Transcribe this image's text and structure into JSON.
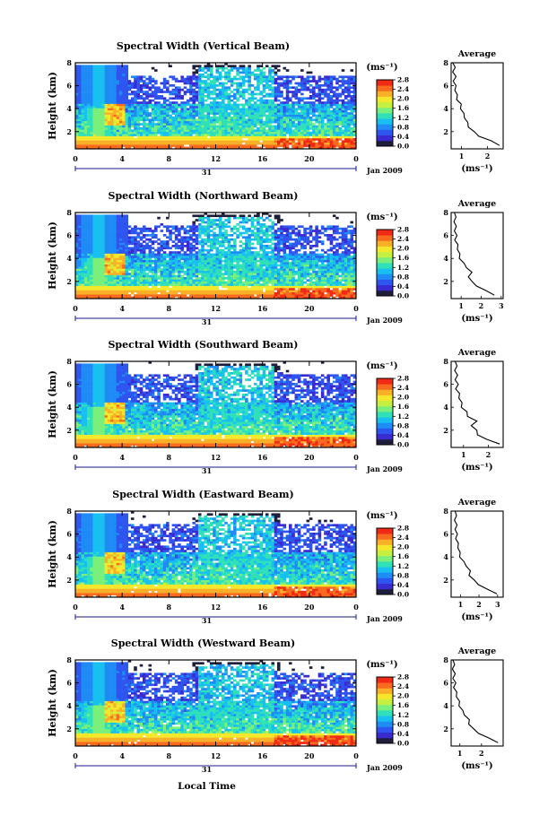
{
  "figure": {
    "xlabel": "Local Time",
    "date_label": "Jan 2009",
    "day_label": "31",
    "units_label": "(ms⁻¹)",
    "avg_title": "Average"
  },
  "colorscale": {
    "min": 0.0,
    "max": 2.8,
    "ticks": [
      "0.0",
      "0.4",
      "0.8",
      "1.2",
      "1.6",
      "2.0",
      "2.4",
      "2.8"
    ],
    "colors": [
      "#1e1e3c",
      "#3a2bd0",
      "#2f55f0",
      "#1f8bf5",
      "#17c0f0",
      "#2fe0b8",
      "#7af07c",
      "#c6f040",
      "#f4e82c",
      "#f8b028",
      "#f86a1e",
      "#f02a14"
    ]
  },
  "chart_data": [
    {
      "type": "heatmap",
      "title": "Spectral Width (Vertical Beam)",
      "ylabel": "Height (km)",
      "xlabel": "Local Time",
      "x_ticks": [
        "0",
        "4",
        "8",
        "12",
        "16",
        "20",
        "0"
      ],
      "y_ticks": [
        "2",
        "4",
        "6",
        "8"
      ],
      "xlim": [
        0,
        24
      ],
      "ylim": [
        0.5,
        8
      ],
      "average_profile": {
        "title": "Average",
        "xlabel": "(ms⁻¹)",
        "x_ticks": [
          "1",
          "2"
        ],
        "xlim": [
          0.6,
          2.6
        ],
        "y_ticks": [
          "2",
          "4",
          "6",
          "8"
        ],
        "heights": [
          0.8,
          1.2,
          1.6,
          2.0,
          2.4,
          2.8,
          3.2,
          3.6,
          4.0,
          4.4,
          4.8,
          5.2,
          5.6,
          6.0,
          6.4,
          6.8,
          7.2,
          7.6,
          8.0
        ],
        "values": [
          2.5,
          2.1,
          1.7,
          1.45,
          1.3,
          1.2,
          1.15,
          1.05,
          1.0,
          0.95,
          0.85,
          0.8,
          0.78,
          0.75,
          0.72,
          0.75,
          0.7,
          0.72,
          0.7
        ]
      }
    },
    {
      "type": "heatmap",
      "title": "Spectral Width (Northward Beam)",
      "ylabel": "Height (km)",
      "xlabel": "Local Time",
      "x_ticks": [
        "0",
        "4",
        "8",
        "12",
        "16",
        "20",
        "0"
      ],
      "y_ticks": [
        "2",
        "4",
        "6",
        "8"
      ],
      "xlim": [
        0,
        24
      ],
      "ylim": [
        0.5,
        8
      ],
      "average_profile": {
        "title": "Average",
        "xlabel": "(ms⁻¹)",
        "x_ticks": [
          "1",
          "2",
          "3"
        ],
        "xlim": [
          0.5,
          3.1
        ],
        "y_ticks": [
          "2",
          "4",
          "6",
          "8"
        ],
        "heights": [
          0.8,
          1.2,
          1.6,
          2.0,
          2.4,
          2.8,
          3.2,
          3.6,
          4.0,
          4.4,
          4.8,
          5.2,
          5.6,
          6.0,
          6.4,
          6.8,
          7.2,
          7.6,
          8.0
        ],
        "values": [
          2.7,
          2.2,
          1.8,
          1.5,
          1.4,
          1.5,
          1.3,
          1.1,
          0.95,
          0.9,
          0.85,
          0.8,
          0.72,
          0.75,
          0.7,
          0.72,
          0.68,
          0.7,
          0.7
        ]
      }
    },
    {
      "type": "heatmap",
      "title": "Spectral Width (Southward Beam)",
      "ylabel": "Height (km)",
      "xlabel": "Local Time",
      "x_ticks": [
        "0",
        "4",
        "8",
        "12",
        "16",
        "20",
        "0"
      ],
      "y_ticks": [
        "2",
        "4",
        "6",
        "8"
      ],
      "xlim": [
        0,
        24
      ],
      "ylim": [
        0.5,
        8
      ],
      "average_profile": {
        "title": "Average",
        "xlabel": "(ms⁻¹)",
        "x_ticks": [
          "1",
          "2"
        ],
        "xlim": [
          0.5,
          2.6
        ],
        "y_ticks": [
          "2",
          "4",
          "6",
          "8"
        ],
        "heights": [
          0.8,
          1.2,
          1.6,
          2.0,
          2.4,
          2.8,
          3.2,
          3.6,
          4.0,
          4.4,
          4.8,
          5.2,
          5.6,
          6.0,
          6.4,
          6.8,
          7.2,
          7.6,
          8.0
        ],
        "values": [
          2.5,
          1.9,
          1.6,
          1.5,
          1.35,
          1.5,
          1.2,
          1.1,
          0.95,
          0.9,
          0.85,
          0.8,
          0.72,
          0.75,
          0.7,
          0.72,
          0.68,
          0.7,
          0.7
        ]
      }
    },
    {
      "type": "heatmap",
      "title": "Spectral Width (Eastward Beam)",
      "ylabel": "Height (km)",
      "xlabel": "Local Time",
      "x_ticks": [
        "0",
        "4",
        "8",
        "12",
        "16",
        "20",
        "0"
      ],
      "y_ticks": [
        "2",
        "4",
        "6",
        "8"
      ],
      "xlim": [
        0,
        24
      ],
      "ylim": [
        0.5,
        8
      ],
      "average_profile": {
        "title": "Average",
        "xlabel": "(ms⁻¹)",
        "x_ticks": [
          "1",
          "2",
          "3"
        ],
        "xlim": [
          0.5,
          3.3
        ],
        "y_ticks": [
          "2",
          "4",
          "6",
          "8"
        ],
        "heights": [
          0.8,
          1.2,
          1.6,
          2.0,
          2.4,
          2.8,
          3.2,
          3.6,
          4.0,
          4.4,
          4.8,
          5.2,
          5.6,
          6.0,
          6.4,
          6.8,
          7.2,
          7.6,
          8.0
        ],
        "values": [
          3.0,
          2.4,
          2.0,
          1.7,
          1.5,
          1.5,
          1.35,
          1.15,
          1.0,
          0.95,
          0.9,
          0.85,
          0.78,
          0.8,
          0.75,
          0.78,
          0.72,
          0.75,
          0.75
        ]
      }
    },
    {
      "type": "heatmap",
      "title": "Spectral Width (Westward Beam)",
      "ylabel": "Height (km)",
      "xlabel": "Local Time",
      "x_ticks": [
        "0",
        "4",
        "8",
        "12",
        "16",
        "20",
        "0"
      ],
      "y_ticks": [
        "2",
        "4",
        "6",
        "8"
      ],
      "xlim": [
        0,
        24
      ],
      "ylim": [
        0.5,
        8
      ],
      "average_profile": {
        "title": "Average",
        "xlabel": "(ms⁻¹)",
        "x_ticks": [
          "1",
          "2"
        ],
        "xlim": [
          0.6,
          3.0
        ],
        "y_ticks": [
          "2",
          "4",
          "6",
          "8"
        ],
        "heights": [
          0.8,
          1.2,
          1.6,
          2.0,
          2.4,
          2.8,
          3.2,
          3.6,
          4.0,
          4.4,
          4.8,
          5.2,
          5.6,
          6.0,
          6.4,
          6.8,
          7.2,
          7.6,
          8.0
        ],
        "values": [
          2.8,
          2.3,
          1.9,
          1.6,
          1.45,
          1.4,
          1.25,
          1.1,
          1.0,
          0.95,
          0.88,
          0.82,
          0.75,
          0.78,
          0.72,
          0.75,
          0.7,
          0.72,
          0.72
        ]
      }
    }
  ]
}
